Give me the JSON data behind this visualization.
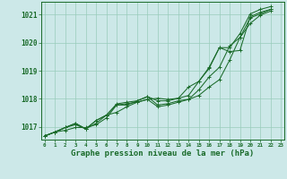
{
  "bg_color": "#cce8e8",
  "grid_color": "#99ccbb",
  "line_color": "#1a6b2a",
  "marker_color": "#1a6b2a",
  "xlabel": "Graphe pression niveau de la mer (hPa)",
  "xlabel_fontsize": 6.5,
  "yticks": [
    1017,
    1018,
    1019,
    1020,
    1021
  ],
  "xticks": [
    0,
    1,
    2,
    3,
    4,
    5,
    6,
    7,
    8,
    9,
    10,
    11,
    12,
    13,
    14,
    15,
    16,
    17,
    18,
    19,
    20,
    21,
    22,
    23
  ],
  "ylim": [
    1016.55,
    1021.45
  ],
  "xlim": [
    -0.3,
    23.3
  ],
  "series1": [
    1016.68,
    1016.82,
    1016.88,
    1016.98,
    1016.98,
    1017.08,
    1017.32,
    1017.78,
    1017.83,
    1017.88,
    1017.98,
    1018.02,
    1017.98,
    1018.02,
    1018.42,
    1018.62,
    1019.08,
    1019.82,
    1019.82,
    1020.32,
    1021.02,
    1021.18,
    1021.28
  ],
  "series2": [
    1016.68,
    1016.82,
    1016.98,
    1017.08,
    1016.93,
    1017.13,
    1017.42,
    1017.82,
    1017.88,
    1017.93,
    1018.08,
    1017.93,
    1017.93,
    1018.02,
    1018.12,
    1018.62,
    1019.12,
    1019.82,
    1019.68,
    1019.72,
    1020.92,
    1021.08,
    1021.18
  ],
  "series3": [
    1016.68,
    1016.82,
    1016.98,
    1017.13,
    1016.93,
    1017.23,
    1017.42,
    1017.78,
    1017.78,
    1017.93,
    1018.08,
    1017.78,
    1017.83,
    1017.93,
    1017.98,
    1018.32,
    1018.78,
    1019.12,
    1019.88,
    1020.18,
    1020.88,
    1021.02,
    1021.18
  ],
  "series4": [
    1016.68,
    1016.82,
    1016.98,
    1017.13,
    1016.93,
    1017.23,
    1017.42,
    1017.52,
    1017.72,
    1017.88,
    1017.98,
    1017.72,
    1017.78,
    1017.88,
    1017.98,
    1018.12,
    1018.42,
    1018.68,
    1019.38,
    1020.18,
    1020.68,
    1020.98,
    1021.12
  ]
}
